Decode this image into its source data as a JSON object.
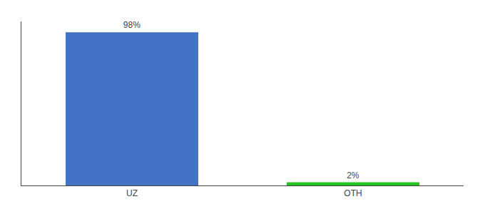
{
  "chart_data": {
    "type": "bar",
    "categories": [
      "UZ",
      "OTH"
    ],
    "values": [
      98,
      2
    ],
    "value_labels": [
      "98%",
      "2%"
    ],
    "colors": [
      "#4472C4",
      "#22C422"
    ],
    "ylim": [
      0,
      105
    ],
    "data_labels": true,
    "tick_labels": "x",
    "grid": false
  }
}
